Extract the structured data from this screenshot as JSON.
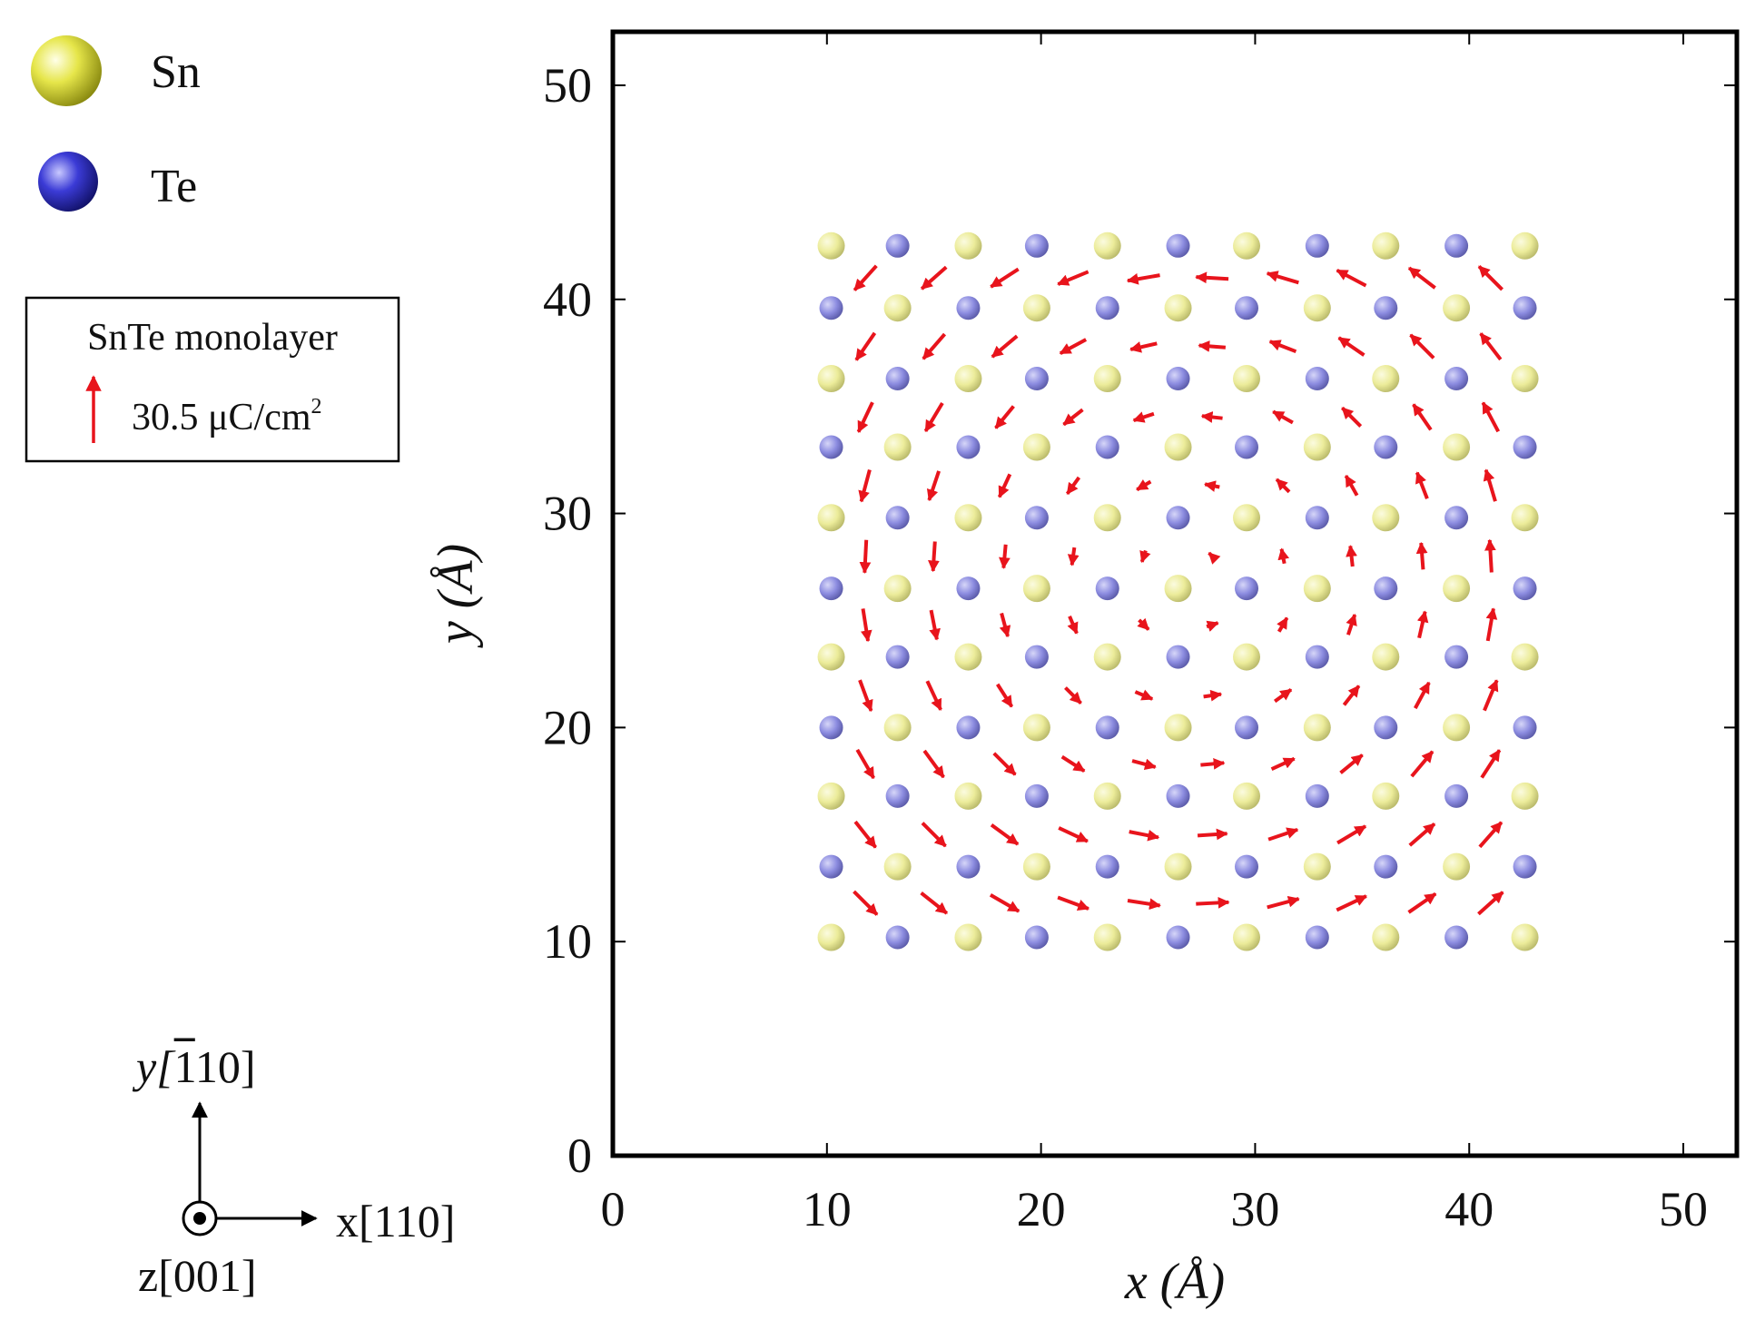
{
  "legend": {
    "species": [
      {
        "label": "Sn",
        "color": "#e6e64a"
      },
      {
        "label": "Te",
        "color": "#3b3bd6"
      }
    ],
    "box_title": "SnTe monolayer",
    "scale_value": "30.5 μC/cm",
    "scale_exponent": "2",
    "arrow_color": "#e8141c"
  },
  "axes_triad": {
    "y_label": "y[",
    "y_index_bar": "1",
    "y_index_rest": "10]",
    "x_label": "x[110]",
    "z_label": "z[001]"
  },
  "chart_data": {
    "type": "scatter",
    "title": "",
    "xlabel": "x (Å)",
    "ylabel": "y (Å)",
    "xlim": [
      0,
      52.5
    ],
    "ylim": [
      0,
      52.5
    ],
    "xticks": [
      0,
      10,
      20,
      30,
      40,
      50
    ],
    "yticks": [
      0,
      10,
      20,
      30,
      40,
      50
    ],
    "xtick_labels": [
      "0",
      "10",
      "20",
      "30",
      "40",
      "50"
    ],
    "ytick_labels": [
      "0",
      "10",
      "20",
      "30",
      "40",
      "50"
    ],
    "grid": false,
    "legend_position": "outside-left",
    "atom_colors": {
      "Sn": "#ecec9a",
      "Te": "#8c8ce0"
    },
    "atom_columns_x": [
      10.2,
      13.3,
      16.6,
      19.8,
      23.1,
      26.4,
      29.6,
      32.9,
      36.1,
      39.4,
      42.6
    ],
    "atom_rows": [
      {
        "y": 42.5,
        "start": "Sn"
      },
      {
        "y": 39.6,
        "start": "Te"
      },
      {
        "y": 36.3,
        "start": "Sn"
      },
      {
        "y": 33.1,
        "start": "Te"
      },
      {
        "y": 29.8,
        "start": "Sn"
      },
      {
        "y": 26.5,
        "start": "Te"
      },
      {
        "y": 23.3,
        "start": "Sn"
      },
      {
        "y": 20.0,
        "start": "Te"
      },
      {
        "y": 16.8,
        "start": "Sn"
      },
      {
        "y": 13.5,
        "start": "Te"
      },
      {
        "y": 10.2,
        "start": "Sn"
      }
    ],
    "polarization": {
      "pattern": "vortex",
      "center": [
        27.2,
        27.2
      ],
      "grid_x": [
        11.8,
        15.0,
        18.3,
        21.5,
        24.8,
        28.0,
        31.3,
        34.5,
        37.8,
        41.0
      ],
      "grid_y": [
        41.0,
        37.8,
        34.5,
        31.3,
        28.0,
        24.8,
        21.5,
        18.3,
        15.0,
        11.8
      ]
    }
  }
}
